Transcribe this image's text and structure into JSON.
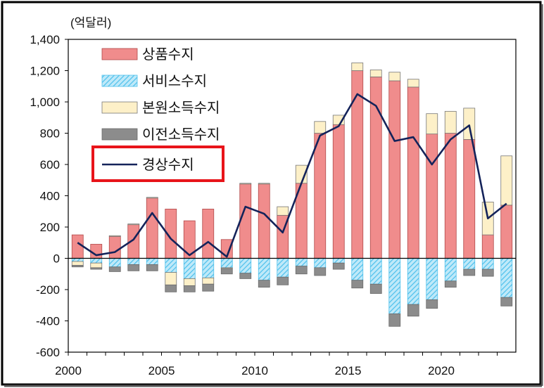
{
  "chart_data": {
    "type": "bar",
    "unit_label": "(억달러)",
    "x": [
      2000,
      2001,
      2002,
      2003,
      2004,
      2005,
      2006,
      2007,
      2008,
      2009,
      2010,
      2011,
      2012,
      2013,
      2014,
      2015,
      2016,
      2017,
      2018,
      2019,
      2020,
      2021,
      2022,
      2023
    ],
    "xticks": [
      "2000",
      "2005",
      "2010",
      "2015",
      "2020"
    ],
    "yticks": [
      "1,400",
      "1,200",
      "1,000",
      "800",
      "600",
      "400",
      "200",
      "0",
      "-200",
      "-400",
      "-600"
    ],
    "ylim": [
      -600,
      1400
    ],
    "series": [
      {
        "name": "상품수지",
        "values": [
          150,
          90,
          140,
          215,
          385,
          315,
          240,
          315,
          120,
          475,
          475,
          275,
          480,
          800,
          855,
          1200,
          1160,
          1135,
          1095,
          795,
          800,
          760,
          150,
          340
        ]
      },
      {
        "name": "서비스수지",
        "values": [
          -20,
          -30,
          -55,
          -40,
          -40,
          -90,
          -130,
          -125,
          -60,
          -95,
          -140,
          -120,
          -50,
          -60,
          -30,
          -140,
          -165,
          -355,
          -295,
          -265,
          -145,
          -70,
          -70,
          -250
        ]
      },
      {
        "name": "본원소득수지",
        "values": [
          -25,
          -30,
          5,
          5,
          5,
          -80,
          -45,
          -40,
          -5,
          5,
          5,
          55,
          115,
          75,
          60,
          50,
          45,
          55,
          50,
          130,
          140,
          200,
          210,
          315
        ]
      },
      {
        "name": "이전소득수지",
        "values": [
          -10,
          -10,
          -30,
          -40,
          -40,
          -45,
          -40,
          -45,
          -35,
          -35,
          -45,
          -50,
          -50,
          -50,
          -40,
          -50,
          -60,
          -80,
          -75,
          -55,
          -40,
          -40,
          -45,
          -55
        ]
      },
      {
        "name": "경상수지",
        "values": [
          100,
          20,
          40,
          120,
          290,
          125,
          20,
          105,
          10,
          330,
          285,
          165,
          480,
          785,
          845,
          1050,
          975,
          750,
          775,
          600,
          760,
          850,
          255,
          350
        ]
      }
    ],
    "colors": {
      "goods": "#f08c8c",
      "services": "#5bc8ef",
      "primary_income": "#fdf0c8",
      "secondary_income": "#8c8c8c",
      "current_account": "#14235a",
      "highlight": "#e8141a"
    }
  }
}
